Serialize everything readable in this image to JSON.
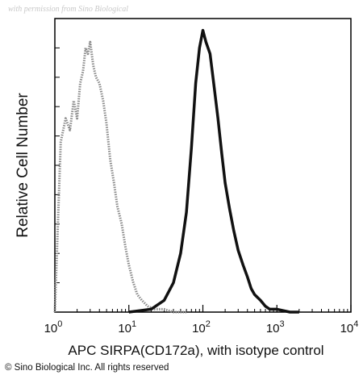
{
  "watermark": "with permission from Sino Biological",
  "copyright": "© Sino Biological Inc. All rights reserved",
  "chart_data": {
    "type": "line",
    "xlabel": "APC SIRPA(CD172a), with isotype control",
    "ylabel": "Relative Cell Number",
    "x_scale": "log",
    "xlim": [
      1,
      10000
    ],
    "ylim": [
      0,
      100
    ],
    "x_ticks": [
      {
        "value": 1,
        "base": "10",
        "exp": "0"
      },
      {
        "value": 10,
        "base": "10",
        "exp": "1"
      },
      {
        "value": 100,
        "base": "10",
        "exp": "2"
      },
      {
        "value": 1000,
        "base": "10",
        "exp": "3"
      },
      {
        "value": 10000,
        "base": "10",
        "exp": "4"
      }
    ],
    "grid": false,
    "legend": "none",
    "series": [
      {
        "color": "#8a8a8a",
        "style": "dotted",
        "x": [
          1.0,
          1.2,
          1.4,
          1.6,
          1.8,
          2.0,
          2.2,
          2.4,
          2.6,
          2.8,
          3.0,
          3.3,
          3.6,
          4.0,
          4.5,
          5.0,
          5.6,
          6.3,
          7.0,
          8.0,
          9.0,
          10.0,
          11.5,
          13.0,
          15.0,
          18.0,
          22.0,
          30.0,
          40.0,
          60.0
        ],
        "y": [
          0,
          58,
          66,
          62,
          72,
          66,
          78,
          82,
          90,
          88,
          92,
          84,
          80,
          78,
          72,
          64,
          52,
          44,
          36,
          30,
          22,
          16,
          10,
          6,
          4,
          2,
          1,
          1,
          0,
          0
        ]
      },
      {
        "color": "#111111",
        "style": "solid",
        "x": [
          10,
          20,
          30,
          40,
          50,
          60,
          70,
          80,
          90,
          100,
          110,
          125,
          140,
          160,
          180,
          200,
          230,
          260,
          300,
          350,
          400,
          450,
          500,
          600,
          700,
          800,
          1000,
          1500,
          2000
        ],
        "y": [
          0,
          1,
          4,
          10,
          20,
          34,
          56,
          78,
          90,
          96,
          92,
          88,
          78,
          66,
          54,
          44,
          35,
          28,
          21,
          16,
          12,
          8,
          6,
          4,
          2,
          1,
          1,
          0,
          0
        ]
      }
    ]
  }
}
